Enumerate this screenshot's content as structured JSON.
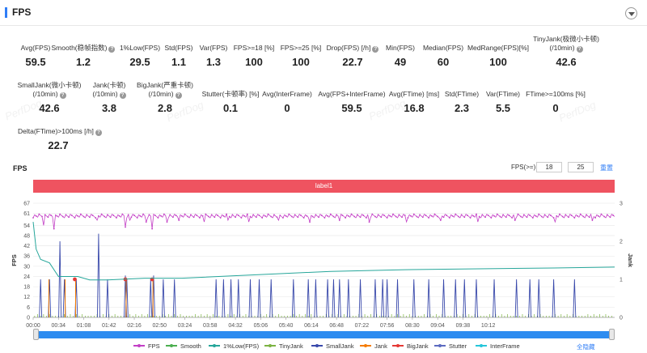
{
  "header": {
    "title": "FPS"
  },
  "metrics": [
    {
      "label": "Avg(FPS)",
      "sub": "",
      "value": "59.5",
      "help": false
    },
    {
      "label": "Smooth(稳帧指数)",
      "sub": "",
      "value": "1.2",
      "help": true
    },
    {
      "label": "1%Low(FPS)",
      "sub": "",
      "value": "29.5",
      "help": false
    },
    {
      "label": "Std(FPS)",
      "sub": "",
      "value": "1.1",
      "help": false
    },
    {
      "label": "Var(FPS)",
      "sub": "",
      "value": "1.3",
      "help": false
    },
    {
      "label": "FPS>=18 [%]",
      "sub": "",
      "value": "100",
      "help": false
    },
    {
      "label": "FPS>=25 [%]",
      "sub": "",
      "value": "100",
      "help": false
    },
    {
      "label": "Drop(FPS) [/h]",
      "sub": "",
      "value": "22.7",
      "help": true
    },
    {
      "label": "Min(FPS)",
      "sub": "",
      "value": "49",
      "help": false
    },
    {
      "label": "Median(FPS)",
      "sub": "",
      "value": "60",
      "help": false
    },
    {
      "label": "MedRange(FPS)[%]",
      "sub": "",
      "value": "100",
      "help": false
    },
    {
      "label": "TinyJank(极微小卡顿)",
      "sub": "(/10min)",
      "value": "42.6",
      "help": true
    },
    {
      "label": "SmallJank(微小卡顿)",
      "sub": "(/10min)",
      "value": "42.6",
      "help": true
    },
    {
      "label": "Jank(卡顿)",
      "sub": "(/10min)",
      "value": "3.8",
      "help": true
    },
    {
      "label": "BigJank(严重卡顿)",
      "sub": "(/10min)",
      "value": "2.8",
      "help": true
    },
    {
      "label": "Stutter(卡顿率) [%]",
      "sub": "",
      "value": "0.1",
      "help": false
    },
    {
      "label": "Avg(InterFrame)",
      "sub": "",
      "value": "0",
      "help": false
    },
    {
      "label": "Avg(FPS+InterFrame)",
      "sub": "",
      "value": "59.5",
      "help": false
    },
    {
      "label": "Avg(FTime) [ms]",
      "sub": "",
      "value": "16.8",
      "help": false
    },
    {
      "label": "Std(FTime)",
      "sub": "",
      "value": "2.3",
      "help": false
    },
    {
      "label": "Var(FTime)",
      "sub": "",
      "value": "5.5",
      "help": false
    },
    {
      "label": "FTime>=100ms [%]",
      "sub": "",
      "value": "0",
      "help": false
    },
    {
      "label": "Delta(FTime)>100ms [/h]",
      "sub": "",
      "value": "22.7",
      "help": true
    }
  ],
  "chart_section": {
    "title": "FPS",
    "filter_label": "FPS(>=)",
    "filter_value_1": "18",
    "filter_value_2": "25",
    "reset_label": "重置",
    "label_bar_text": "label1",
    "hide_all_label": "全隐藏",
    "watermark": "PerfDog"
  },
  "chart_data": {
    "type": "line",
    "title": "",
    "ylabel": "FPS",
    "y2label": "Jank",
    "yticks": [
      0,
      6,
      12,
      18,
      24,
      30,
      36,
      42,
      48,
      54,
      61,
      67
    ],
    "y2ticks": [
      0,
      1,
      2,
      3
    ],
    "ylim": [
      0,
      67
    ],
    "y2lim": [
      0,
      3
    ],
    "xlim_seconds": [
      0,
      782
    ],
    "x_ticks": [
      "00:00",
      "00:34",
      "01:08",
      "01:42",
      "02:16",
      "02:50",
      "03:24",
      "03:58",
      "04:32",
      "05:06",
      "05:40",
      "06:14",
      "06:48",
      "07:22",
      "07:56",
      "08:30",
      "09:04",
      "09:38",
      "10:12"
    ],
    "x_tick_seconds": [
      0,
      34,
      68,
      102,
      136,
      170,
      204,
      238,
      272,
      306,
      340,
      374,
      408,
      442,
      476,
      510,
      544,
      578,
      612
    ],
    "fps_baseline": 59.5,
    "fps_dips": [
      [
        3,
        50
      ],
      [
        14,
        54
      ],
      [
        28,
        52
      ],
      [
        37,
        55
      ],
      [
        41,
        50
      ],
      [
        86,
        57
      ],
      [
        97,
        56
      ],
      [
        124,
        53
      ],
      [
        130,
        57
      ],
      [
        152,
        56
      ],
      [
        160,
        52
      ],
      [
        180,
        56
      ],
      [
        196,
        57
      ],
      [
        230,
        56
      ],
      [
        262,
        57
      ],
      [
        290,
        56
      ],
      [
        330,
        57
      ],
      [
        372,
        56
      ],
      [
        412,
        57
      ],
      [
        452,
        56
      ],
      [
        502,
        56
      ],
      [
        548,
        57
      ],
      [
        598,
        56
      ],
      [
        648,
        57
      ],
      [
        702,
        56
      ],
      [
        752,
        57
      ]
    ],
    "low1_points": [
      [
        0,
        56
      ],
      [
        4,
        40
      ],
      [
        10,
        34
      ],
      [
        22,
        32
      ],
      [
        34,
        24
      ],
      [
        60,
        24
      ],
      [
        76,
        22
      ],
      [
        100,
        22
      ],
      [
        150,
        23
      ],
      [
        200,
        23
      ],
      [
        300,
        25
      ],
      [
        400,
        27
      ],
      [
        500,
        28
      ],
      [
        600,
        28.5
      ],
      [
        700,
        29
      ],
      [
        782,
        29.5
      ]
    ],
    "small_jank_spikes": [
      [
        10,
        1
      ],
      [
        22,
        1
      ],
      [
        36,
        2
      ],
      [
        42,
        1
      ],
      [
        58,
        1
      ],
      [
        88,
        2.2
      ],
      [
        100,
        1
      ],
      [
        124,
        1.1
      ],
      [
        126,
        1
      ],
      [
        158,
        1
      ],
      [
        162,
        1.1
      ],
      [
        175,
        1
      ],
      [
        190,
        1
      ],
      [
        246,
        1
      ],
      [
        256,
        1
      ],
      [
        266,
        1
      ],
      [
        276,
        1
      ],
      [
        292,
        1
      ],
      [
        304,
        1
      ],
      [
        320,
        1
      ],
      [
        350,
        1
      ],
      [
        370,
        1
      ],
      [
        380,
        1
      ],
      [
        396,
        1
      ],
      [
        404,
        1
      ],
      [
        412,
        1
      ],
      [
        424,
        1
      ],
      [
        440,
        1
      ],
      [
        460,
        1
      ],
      [
        470,
        1
      ],
      [
        476,
        1
      ],
      [
        490,
        1
      ],
      [
        512,
        1
      ],
      [
        532,
        1
      ],
      [
        552,
        1
      ],
      [
        568,
        1
      ],
      [
        580,
        1
      ],
      [
        596,
        1
      ],
      [
        620,
        1
      ],
      [
        650,
        1
      ],
      [
        668,
        1
      ],
      [
        680,
        1
      ],
      [
        700,
        1
      ],
      [
        728,
        1
      ]
    ],
    "jank_spikes": [
      [
        20,
        1
      ],
      [
        42,
        1
      ],
      [
        56,
        1
      ],
      [
        124,
        1
      ],
      [
        160,
        1
      ]
    ],
    "big_jank_points": [
      [
        56,
        1
      ],
      [
        124,
        1
      ],
      [
        160,
        1
      ]
    ],
    "series": [
      {
        "name": "FPS",
        "color": "#c33fc6"
      },
      {
        "name": "Smooth",
        "color": "#4caf50"
      },
      {
        "name": "1%Low(FPS)",
        "color": "#26a69a"
      },
      {
        "name": "TinyJank",
        "color": "#7cb342"
      },
      {
        "name": "SmallJank",
        "color": "#3949ab"
      },
      {
        "name": "Jank",
        "color": "#f57c00"
      },
      {
        "name": "BigJank",
        "color": "#e53935"
      },
      {
        "name": "Stutter",
        "color": "#5c6bc0"
      },
      {
        "name": "InterFrame",
        "color": "#26c6da"
      }
    ]
  }
}
